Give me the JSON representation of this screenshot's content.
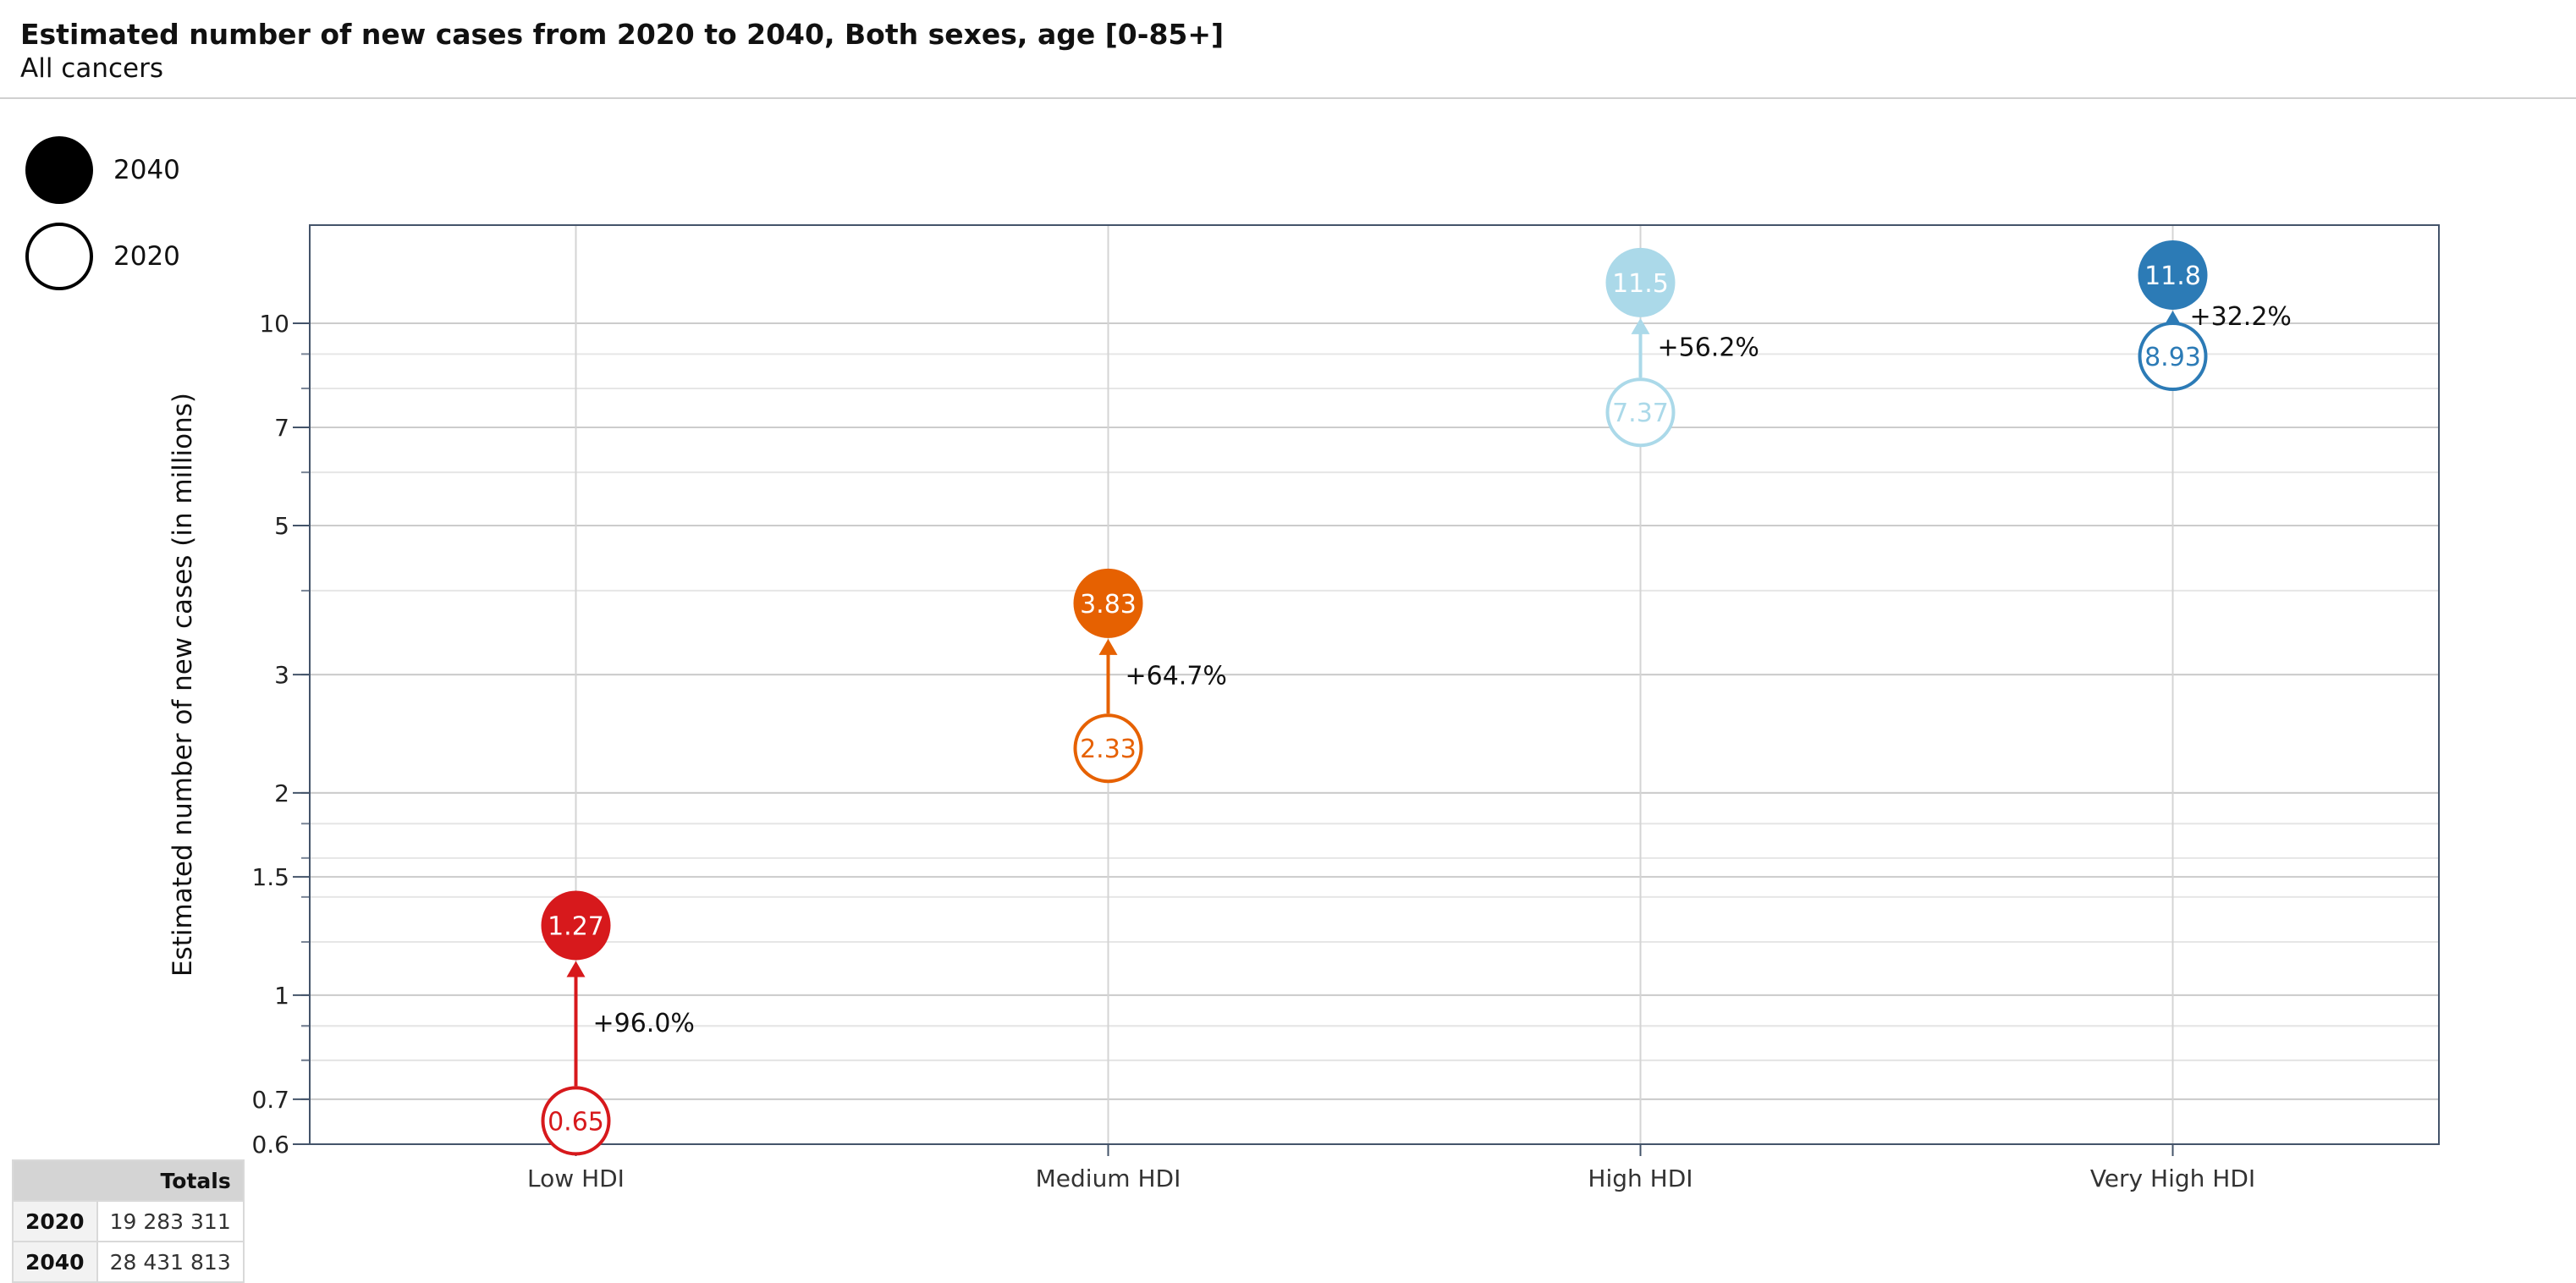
{
  "header": {
    "title": "Estimated number of new cases from 2020 to 2040, Both sexes, age [0-85+]",
    "subtitle": "All cancers"
  },
  "legend": {
    "filled_label": "2040",
    "hollow_label": "2020"
  },
  "totals": {
    "header": "Totals",
    "rows": [
      {
        "year": "2020",
        "value": "19 283 311"
      },
      {
        "year": "2040",
        "value": "28 431 813"
      }
    ]
  },
  "chart_data": {
    "type": "scatter",
    "subtype": "dumbbell",
    "yscale": "log",
    "ylabel": "Estimated number of new cases (in millions)",
    "ylim": [
      0.6,
      14
    ],
    "yticks": [
      "0.6",
      "0.7",
      "1",
      "1.5",
      "2",
      "3",
      "5",
      "7",
      "10"
    ],
    "grid": true,
    "categories": [
      "Low HDI",
      "Medium HDI",
      "High HDI",
      "Very High HDI"
    ],
    "series": [
      {
        "name": "2020",
        "values": [
          0.65,
          2.33,
          7.37,
          8.93
        ],
        "labels": [
          "0.65",
          "2.33",
          "7.37",
          "8.93"
        ]
      },
      {
        "name": "2040",
        "values": [
          1.27,
          3.83,
          11.5,
          11.8
        ],
        "labels": [
          "1.27",
          "3.83",
          "11.5",
          "11.8"
        ]
      }
    ],
    "change_labels": [
      "+96.0%",
      "+64.7%",
      "+56.2%",
      "+32.2%"
    ],
    "colors": [
      "#d7191c",
      "#e66101",
      "#abd9e9",
      "#2c7bb6"
    ]
  }
}
